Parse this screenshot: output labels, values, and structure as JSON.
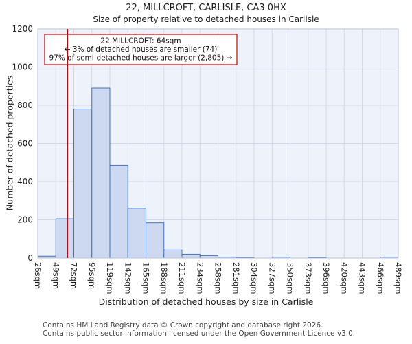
{
  "header": {
    "title": "22, MILLCROFT, CARLISLE, CA3 0HX",
    "subtitle": "Size of property relative to detached houses in Carlisle"
  },
  "axes": {
    "x_title": "Distribution of detached houses by size in Carlisle",
    "y_title": "Number of detached properties"
  },
  "annotation": {
    "lines": [
      "22 MILLCROFT: 64sqm",
      "← 3% of detached houses are smaller (74)",
      "97% of semi-detached houses are larger (2,805) →"
    ]
  },
  "footer": {
    "line1": "Contains HM Land Registry data © Crown copyright and database right 2026.",
    "line2": "Contains public sector information licensed under the Open Government Licence v3.0."
  },
  "colors": {
    "marker_red": "#cc0000",
    "bar_fill": "#ccd9f1",
    "bar_stroke": "#4472c4",
    "grid": "#d2d9e8",
    "plot_bg": "#eef2fa",
    "plot_border": "#b9c2d4",
    "tick_text": "#222222",
    "annotation_text": "#111111"
  },
  "chart_data": {
    "type": "bar",
    "title": "22, MILLCROFT, CARLISLE, CA3 0HX",
    "subtitle": "Size of property relative to detached houses in Carlisle",
    "xlabel": "Distribution of detached houses by size in Carlisle",
    "ylabel": "Number of detached properties",
    "bin_unit": "sqm",
    "bin_edges": [
      26,
      49,
      72,
      95,
      119,
      142,
      165,
      188,
      211,
      234,
      258,
      281,
      304,
      327,
      350,
      373,
      396,
      420,
      443,
      466,
      489
    ],
    "values": [
      10,
      205,
      780,
      890,
      485,
      260,
      185,
      42,
      20,
      13,
      5,
      3,
      0,
      5,
      0,
      3,
      0,
      0,
      0,
      5
    ],
    "marker_value": 64,
    "marker_label": "22 MILLCROFT: 64sqm",
    "ylim": [
      0,
      1200
    ],
    "yticks": [
      0,
      200,
      400,
      600,
      800,
      1000,
      1200
    ],
    "grid": true,
    "legend": false
  }
}
